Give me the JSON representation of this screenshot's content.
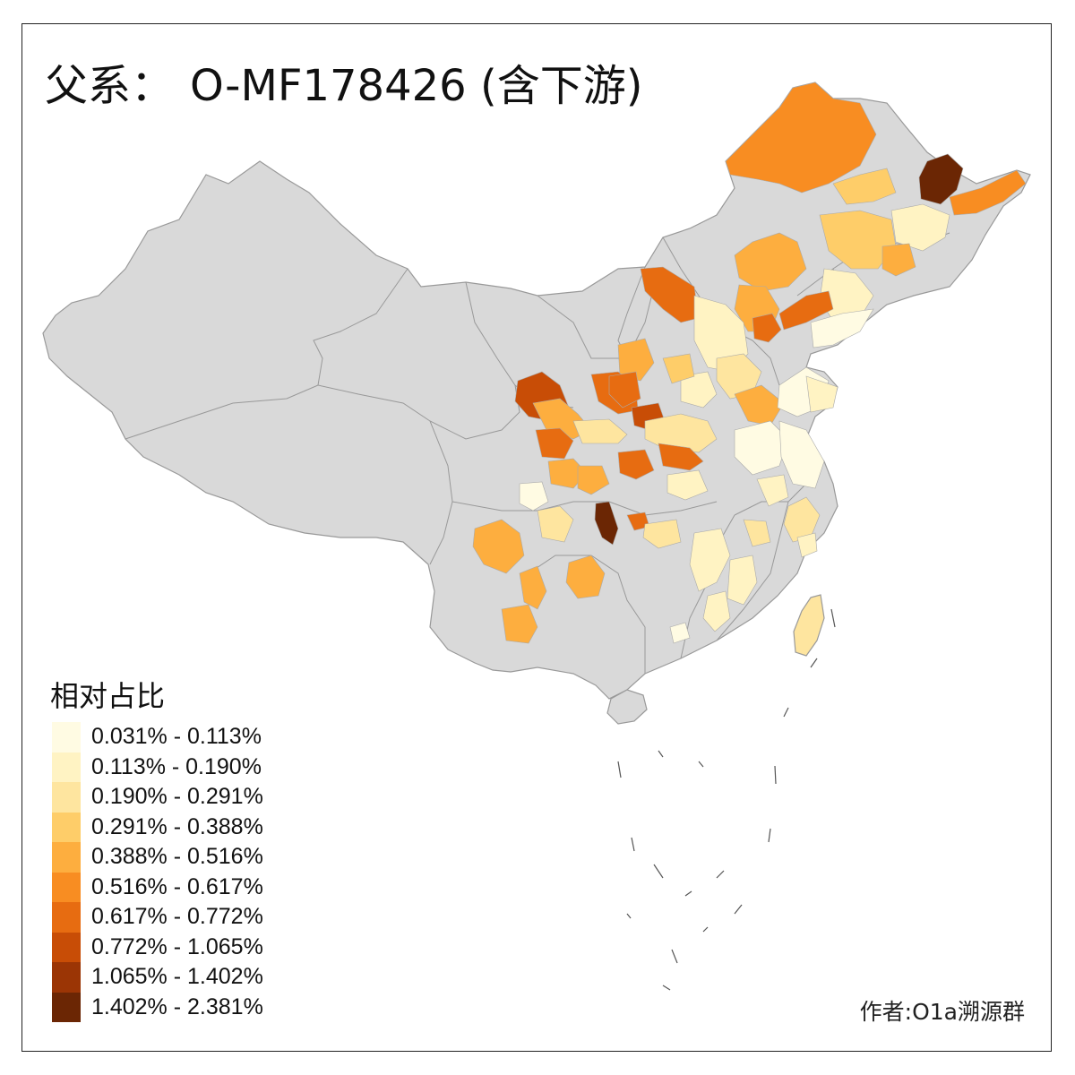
{
  "title": {
    "prefix": "父系：",
    "haplogroup": "O-MF178426 (含下游)"
  },
  "legend": {
    "title": "相对占比",
    "classes": [
      {
        "label": "0.031% - 0.113%",
        "color": "#fffbe3"
      },
      {
        "label": "0.113% - 0.190%",
        "color": "#fff3c3"
      },
      {
        "label": "0.190% - 0.291%",
        "color": "#fee59f"
      },
      {
        "label": "0.291% - 0.388%",
        "color": "#fecd69"
      },
      {
        "label": "0.388% - 0.516%",
        "color": "#fdae3f"
      },
      {
        "label": "0.516% - 0.617%",
        "color": "#f88d22"
      },
      {
        "label": "0.617% - 0.772%",
        "color": "#e76c11"
      },
      {
        "label": "0.772% - 1.065%",
        "color": "#c84d06"
      },
      {
        "label": "1.065% - 1.402%",
        "color": "#9b3505"
      },
      {
        "label": "1.402% - 2.381%",
        "color": "#6b2604"
      }
    ]
  },
  "credit": "作者:O1a溯源群",
  "colors": {
    "base": "#d9d9d9",
    "border": "#999999",
    "nodata": "#d9d9d9"
  }
}
